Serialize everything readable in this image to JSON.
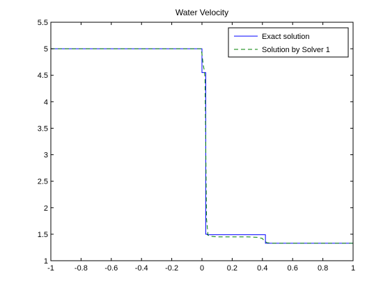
{
  "chart_data": {
    "type": "line",
    "title": "Water Velocity",
    "xlabel": "",
    "ylabel": "",
    "xlim": [
      -1,
      1
    ],
    "ylim": [
      1,
      5.5
    ],
    "xticks": [
      -1,
      -0.8,
      -0.6,
      -0.4,
      -0.2,
      0,
      0.2,
      0.4,
      0.6,
      0.8,
      1
    ],
    "xtick_labels": [
      "-1",
      "-0.8",
      "-0.6",
      "-0.4",
      "-0.2",
      "0",
      "0.2",
      "0.4",
      "0.6",
      "0.8",
      "1"
    ],
    "yticks": [
      1,
      1.5,
      2,
      2.5,
      3,
      3.5,
      4,
      4.5,
      5,
      5.5
    ],
    "ytick_labels": [
      "1",
      "1.5",
      "2",
      "2.5",
      "3",
      "3.5",
      "4",
      "4.5",
      "5",
      "5.5"
    ],
    "grid": false,
    "legend_position": "top-right",
    "series": [
      {
        "name": "Exact solution",
        "color": "#0000ff",
        "style": "solid",
        "x": [
          -1,
          0.0,
          0.0,
          0.025,
          0.025,
          0.035,
          0.035,
          0.42,
          0.42,
          1.0
        ],
        "y": [
          5.0,
          5.0,
          4.55,
          4.55,
          1.5,
          1.5,
          1.49,
          1.49,
          1.33,
          1.33
        ]
      },
      {
        "name": "Solution by Solver 1",
        "color": "#008000",
        "style": "dashed",
        "x": [
          -1,
          -0.005,
          0.0,
          0.008,
          0.015,
          0.02,
          0.025,
          0.03,
          0.04,
          0.06,
          0.1,
          0.2,
          0.3,
          0.37,
          0.4,
          0.41,
          0.43,
          0.46,
          0.5,
          0.7,
          1.0
        ],
        "y": [
          5.0,
          5.0,
          4.9,
          4.7,
          4.6,
          4.45,
          3.2,
          1.8,
          1.48,
          1.46,
          1.45,
          1.45,
          1.45,
          1.44,
          1.42,
          1.38,
          1.34,
          1.33,
          1.33,
          1.33,
          1.33
        ]
      }
    ]
  }
}
